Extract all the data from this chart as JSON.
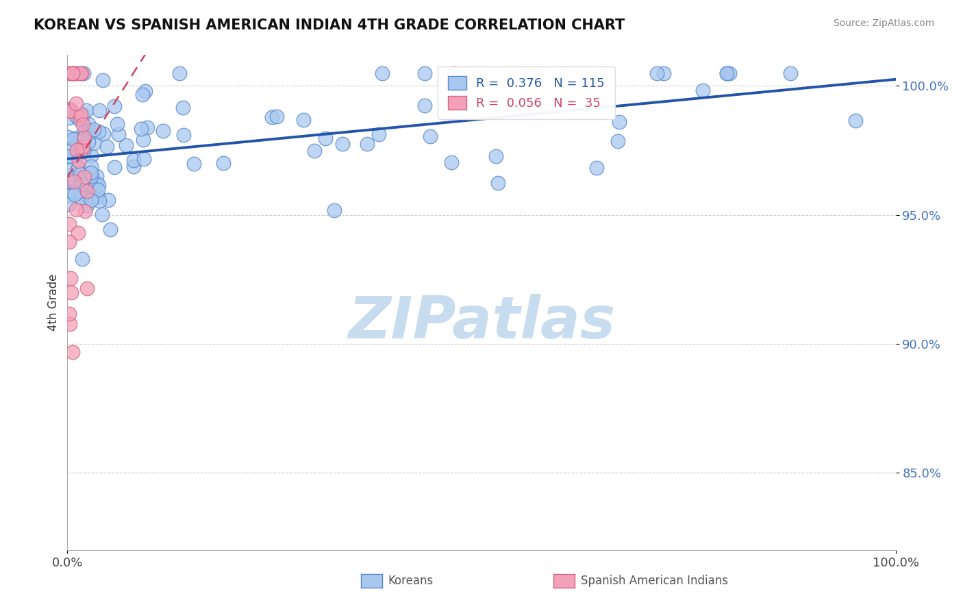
{
  "title": "KOREAN VS SPANISH AMERICAN INDIAN 4TH GRADE CORRELATION CHART",
  "source_text": "Source: ZipAtlas.com",
  "ylabel": "4th Grade",
  "ytick_labels": [
    "85.0%",
    "90.0%",
    "95.0%",
    "100.0%"
  ],
  "ytick_values": [
    0.85,
    0.9,
    0.95,
    1.0
  ],
  "legend_line1": "R =  0.376   N = 115",
  "legend_line2": "R =  0.056   N =  35",
  "blue_fill": "#A8C8F0",
  "blue_edge": "#5588CC",
  "blue_line": "#2255AA",
  "pink_fill": "#F4A0B8",
  "pink_edge": "#CC6688",
  "pink_line": "#CC4466",
  "watermark_color": "#C8DCF0",
  "bg_color": "#FFFFFF",
  "grid_color": "#CCCCCC",
  "title_color": "#111111",
  "source_color": "#888888",
  "yticklabel_color": "#4472C4",
  "xticklabel_color": "#444444",
  "legend_blue_color": "#2255AA",
  "legend_pink_color": "#CC4466"
}
